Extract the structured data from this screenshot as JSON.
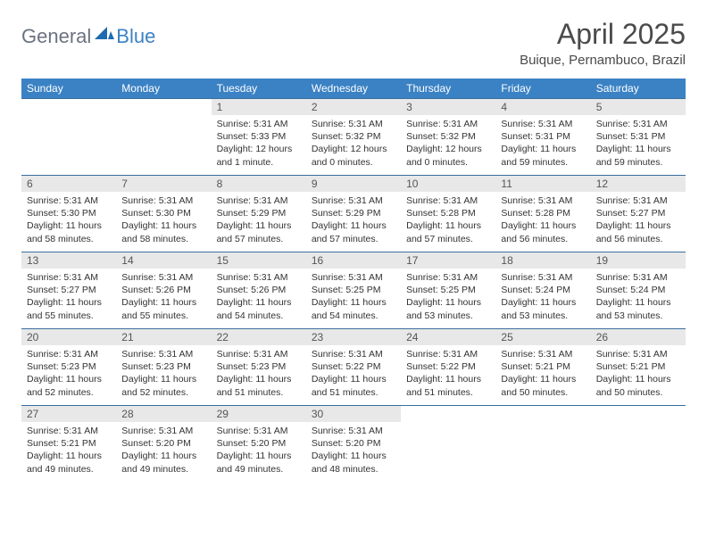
{
  "logo": {
    "general": "General",
    "blue": "Blue"
  },
  "title": "April 2025",
  "location": "Buique, Pernambuco, Brazil",
  "colors": {
    "header_bg": "#3b82c4",
    "header_text": "#ffffff",
    "row_border": "#3b6ea0",
    "daynum_bg": "#e8e8e8",
    "body_text": "#333333",
    "title_text": "#4a4a4a"
  },
  "day_headers": [
    "Sunday",
    "Monday",
    "Tuesday",
    "Wednesday",
    "Thursday",
    "Friday",
    "Saturday"
  ],
  "weeks": [
    [
      {
        "n": "",
        "empty": true
      },
      {
        "n": "",
        "empty": true
      },
      {
        "n": "1",
        "sr": "5:31 AM",
        "ss": "5:33 PM",
        "d": "12 hours and 1 minute."
      },
      {
        "n": "2",
        "sr": "5:31 AM",
        "ss": "5:32 PM",
        "d": "12 hours and 0 minutes."
      },
      {
        "n": "3",
        "sr": "5:31 AM",
        "ss": "5:32 PM",
        "d": "12 hours and 0 minutes."
      },
      {
        "n": "4",
        "sr": "5:31 AM",
        "ss": "5:31 PM",
        "d": "11 hours and 59 minutes."
      },
      {
        "n": "5",
        "sr": "5:31 AM",
        "ss": "5:31 PM",
        "d": "11 hours and 59 minutes."
      }
    ],
    [
      {
        "n": "6",
        "sr": "5:31 AM",
        "ss": "5:30 PM",
        "d": "11 hours and 58 minutes."
      },
      {
        "n": "7",
        "sr": "5:31 AM",
        "ss": "5:30 PM",
        "d": "11 hours and 58 minutes."
      },
      {
        "n": "8",
        "sr": "5:31 AM",
        "ss": "5:29 PM",
        "d": "11 hours and 57 minutes."
      },
      {
        "n": "9",
        "sr": "5:31 AM",
        "ss": "5:29 PM",
        "d": "11 hours and 57 minutes."
      },
      {
        "n": "10",
        "sr": "5:31 AM",
        "ss": "5:28 PM",
        "d": "11 hours and 57 minutes."
      },
      {
        "n": "11",
        "sr": "5:31 AM",
        "ss": "5:28 PM",
        "d": "11 hours and 56 minutes."
      },
      {
        "n": "12",
        "sr": "5:31 AM",
        "ss": "5:27 PM",
        "d": "11 hours and 56 minutes."
      }
    ],
    [
      {
        "n": "13",
        "sr": "5:31 AM",
        "ss": "5:27 PM",
        "d": "11 hours and 55 minutes."
      },
      {
        "n": "14",
        "sr": "5:31 AM",
        "ss": "5:26 PM",
        "d": "11 hours and 55 minutes."
      },
      {
        "n": "15",
        "sr": "5:31 AM",
        "ss": "5:26 PM",
        "d": "11 hours and 54 minutes."
      },
      {
        "n": "16",
        "sr": "5:31 AM",
        "ss": "5:25 PM",
        "d": "11 hours and 54 minutes."
      },
      {
        "n": "17",
        "sr": "5:31 AM",
        "ss": "5:25 PM",
        "d": "11 hours and 53 minutes."
      },
      {
        "n": "18",
        "sr": "5:31 AM",
        "ss": "5:24 PM",
        "d": "11 hours and 53 minutes."
      },
      {
        "n": "19",
        "sr": "5:31 AM",
        "ss": "5:24 PM",
        "d": "11 hours and 53 minutes."
      }
    ],
    [
      {
        "n": "20",
        "sr": "5:31 AM",
        "ss": "5:23 PM",
        "d": "11 hours and 52 minutes."
      },
      {
        "n": "21",
        "sr": "5:31 AM",
        "ss": "5:23 PM",
        "d": "11 hours and 52 minutes."
      },
      {
        "n": "22",
        "sr": "5:31 AM",
        "ss": "5:23 PM",
        "d": "11 hours and 51 minutes."
      },
      {
        "n": "23",
        "sr": "5:31 AM",
        "ss": "5:22 PM",
        "d": "11 hours and 51 minutes."
      },
      {
        "n": "24",
        "sr": "5:31 AM",
        "ss": "5:22 PM",
        "d": "11 hours and 51 minutes."
      },
      {
        "n": "25",
        "sr": "5:31 AM",
        "ss": "5:21 PM",
        "d": "11 hours and 50 minutes."
      },
      {
        "n": "26",
        "sr": "5:31 AM",
        "ss": "5:21 PM",
        "d": "11 hours and 50 minutes."
      }
    ],
    [
      {
        "n": "27",
        "sr": "5:31 AM",
        "ss": "5:21 PM",
        "d": "11 hours and 49 minutes."
      },
      {
        "n": "28",
        "sr": "5:31 AM",
        "ss": "5:20 PM",
        "d": "11 hours and 49 minutes."
      },
      {
        "n": "29",
        "sr": "5:31 AM",
        "ss": "5:20 PM",
        "d": "11 hours and 49 minutes."
      },
      {
        "n": "30",
        "sr": "5:31 AM",
        "ss": "5:20 PM",
        "d": "11 hours and 48 minutes."
      },
      {
        "n": "",
        "empty": true
      },
      {
        "n": "",
        "empty": true
      },
      {
        "n": "",
        "empty": true
      }
    ]
  ],
  "labels": {
    "sunrise": "Sunrise:",
    "sunset": "Sunset:",
    "daylight": "Daylight:"
  }
}
